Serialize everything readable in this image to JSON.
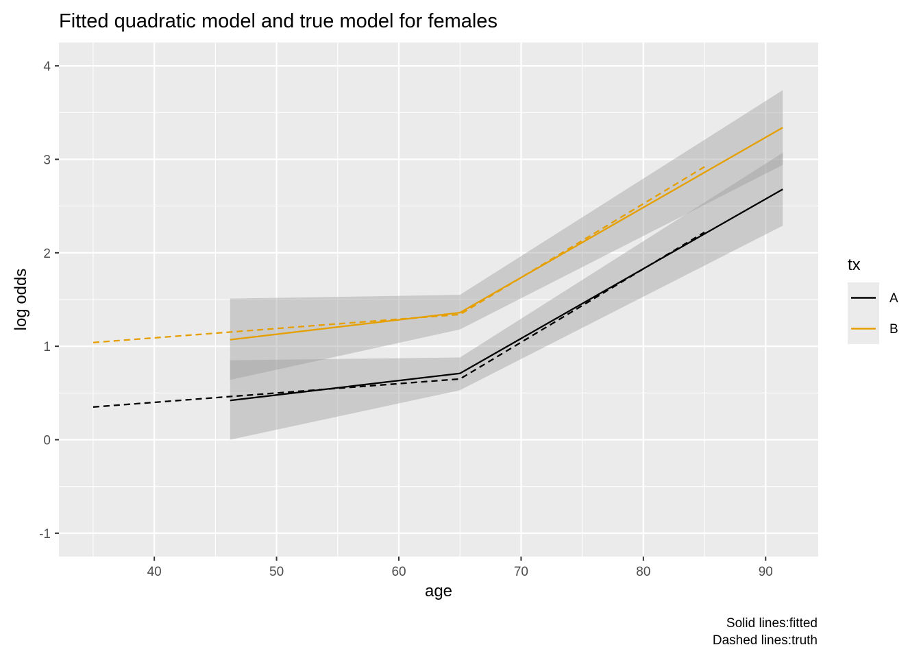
{
  "chart_data": {
    "type": "line",
    "title": "Fitted quadratic model and true model for females",
    "xlabel": "age",
    "ylabel": "log odds",
    "xlim": [
      32.2,
      94.3
    ],
    "ylim": [
      -1.25,
      4.25
    ],
    "x_ticks": [
      40,
      50,
      60,
      70,
      80,
      90
    ],
    "y_ticks": [
      -1,
      0,
      1,
      2,
      3,
      4
    ],
    "x_tick_labels": [
      "40",
      "50",
      "60",
      "70",
      "80",
      "90"
    ],
    "y_tick_labels": [
      "-1",
      "0",
      "1",
      "2",
      "3",
      "4"
    ],
    "grid": true,
    "legend": {
      "title": "tx",
      "position": "right",
      "entries": [
        {
          "label": "A",
          "color": "#000000"
        },
        {
          "label": "B",
          "color": "#E69F00"
        }
      ]
    },
    "caption": [
      "Solid lines:fitted",
      "Dashed lines:truth"
    ],
    "series": [
      {
        "name": "A",
        "kind": "fitted",
        "color": "#000000",
        "style": "solid",
        "x": [
          46.2,
          65,
          91.4
        ],
        "y": [
          0.42,
          0.71,
          2.68
        ],
        "ci_lower": [
          0.0,
          0.53,
          2.29
        ],
        "ci_upper": [
          0.85,
          0.88,
          3.07
        ]
      },
      {
        "name": "B",
        "kind": "fitted",
        "color": "#E69F00",
        "style": "solid",
        "x": [
          46.2,
          65,
          91.4
        ],
        "y": [
          1.07,
          1.36,
          3.34
        ],
        "ci_lower": [
          0.64,
          1.18,
          2.94
        ],
        "ci_upper": [
          1.51,
          1.55,
          3.74
        ]
      },
      {
        "name": "A",
        "kind": "truth",
        "color": "#000000",
        "style": "dashed",
        "x": [
          35,
          65,
          85
        ],
        "y": [
          0.35,
          0.65,
          2.22
        ]
      },
      {
        "name": "B",
        "kind": "truth",
        "color": "#E69F00",
        "style": "dashed",
        "x": [
          35,
          65,
          85
        ],
        "y": [
          1.04,
          1.34,
          2.92
        ]
      }
    ]
  }
}
